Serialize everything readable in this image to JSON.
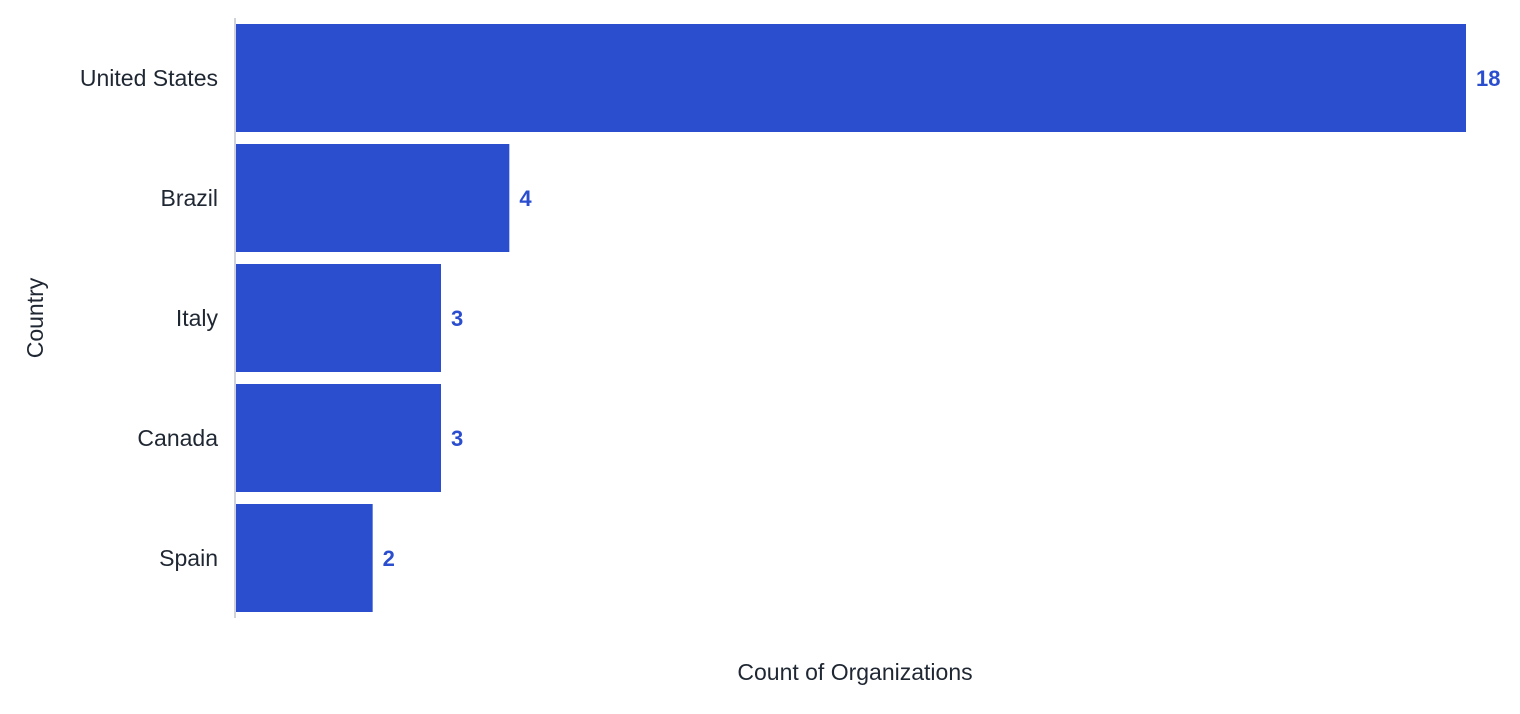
{
  "chart_data": {
    "type": "bar",
    "orientation": "horizontal",
    "categories": [
      "United States",
      "Brazil",
      "Italy",
      "Canada",
      "Spain"
    ],
    "values": [
      18,
      4,
      3,
      3,
      2
    ],
    "xlabel": "Count of Organizations",
    "ylabel": "Country",
    "xlim": [
      0,
      18
    ],
    "grid": false,
    "legend": false,
    "data_labels": true,
    "bar_color": "#2b4ecf",
    "label_color": "#2b4ecf",
    "axis_color": "#d0d4da"
  }
}
